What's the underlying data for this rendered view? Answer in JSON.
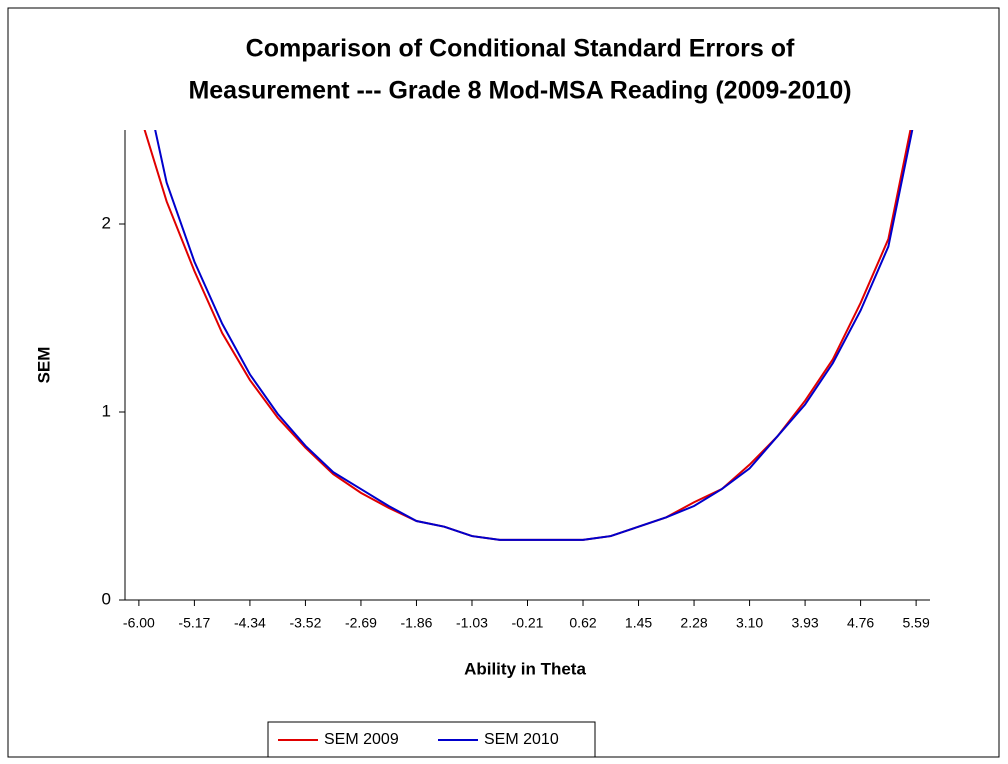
{
  "chart_data": {
    "type": "line",
    "title": "Comparison of Conditional Standard Errors of",
    "subtitle": "Measurement --- Grade 8 Mod-MSA Reading (2009-2010)",
    "x_label": "Ability in Theta",
    "y_label": "SEM",
    "categories": [
      "-6.00",
      null,
      "-5.17",
      null,
      "-4.34",
      null,
      "-3.52",
      null,
      "-2.69",
      null,
      "-1.86",
      null,
      "-1.03",
      null,
      "-0.21",
      null,
      "0.62",
      null,
      "1.45",
      null,
      "2.28",
      null,
      "3.10",
      null,
      "3.93",
      null,
      "4.76",
      null,
      "5.59"
    ],
    "series": [
      {
        "name": "SEM 2009",
        "color": "#e00000",
        "values": [
          2.6,
          2.12,
          1.75,
          1.42,
          1.17,
          0.97,
          0.81,
          0.67,
          0.57,
          0.49,
          0.42,
          0.39,
          0.34,
          0.32,
          0.32,
          0.32,
          0.32,
          0.34,
          0.39,
          0.44,
          0.52,
          0.59,
          0.72,
          0.87,
          1.06,
          1.28,
          1.58,
          1.92,
          2.65
        ]
      },
      {
        "name": "SEM 2010",
        "color": "#0000cc",
        "values": [
          2.9,
          2.22,
          1.8,
          1.47,
          1.2,
          0.99,
          0.82,
          0.68,
          0.59,
          0.5,
          0.42,
          0.39,
          0.34,
          0.32,
          0.32,
          0.32,
          0.32,
          0.34,
          0.39,
          0.44,
          0.5,
          0.59,
          0.7,
          0.87,
          1.04,
          1.26,
          1.54,
          1.88,
          2.6
        ]
      }
    ],
    "ylim": [
      0,
      2.5
    ],
    "yticks": [
      0,
      1,
      2
    ],
    "grid": false,
    "legend": "bottom"
  }
}
